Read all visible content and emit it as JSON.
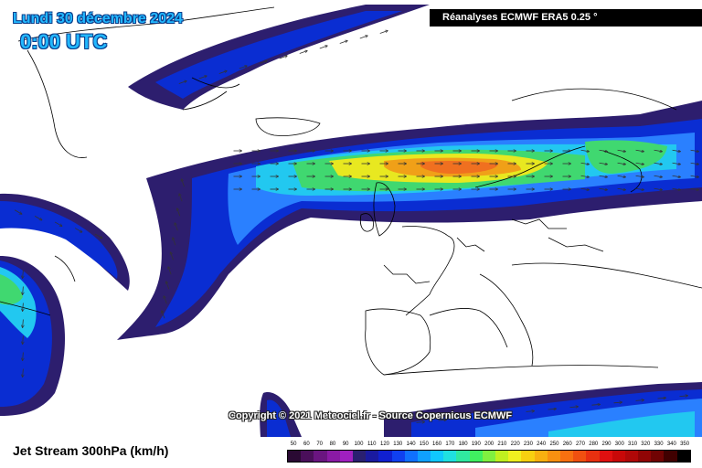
{
  "header": {
    "date": "Lundi 30 décembre 2024",
    "time": "0:00 UTC",
    "source": "Réanalyses ECMWF ERA5 0.25 °"
  },
  "copyright": "Copyright © 2021 Meteociel.fr - Source Copernicus ECMWF",
  "footer": {
    "title": "Jet Stream 300hPa (km/h)"
  },
  "legend": {
    "values": [
      "50",
      "60",
      "70",
      "80",
      "90",
      "100",
      "110",
      "120",
      "130",
      "140",
      "150",
      "160",
      "170",
      "180",
      "190",
      "200",
      "210",
      "220",
      "230",
      "240",
      "250",
      "260",
      "270",
      "280",
      "290",
      "300",
      "310",
      "320",
      "330",
      "340",
      "350"
    ],
    "colors": [
      "#2a0a33",
      "#4a0f5a",
      "#6a1580",
      "#8a1aa5",
      "#a020c0",
      "#2a2070",
      "#1a1aa0",
      "#1020d0",
      "#1040f0",
      "#1070ff",
      "#10a0ff",
      "#10c8ff",
      "#20e0e0",
      "#30e8a0",
      "#40f060",
      "#80f040",
      "#c0f020",
      "#f0f020",
      "#f8d010",
      "#f8b010",
      "#f89010",
      "#f87010",
      "#f05010",
      "#e83010",
      "#e01010",
      "#c80808",
      "#b00808",
      "#900505",
      "#700303",
      "#400000",
      "#000000"
    ]
  },
  "map": {
    "colors": {
      "ocean": "#ffffff",
      "land_line": "#000000",
      "jet_outer": "#2d1e6e",
      "jet_blue": "#0a2dd2",
      "jet_mid": "#2a80ff",
      "jet_cyan": "#22c8f0",
      "jet_green": "#40d870",
      "jet_yellow": "#e8e820",
      "jet_orange": "#f0a018",
      "jet_core": "#f07020"
    }
  }
}
